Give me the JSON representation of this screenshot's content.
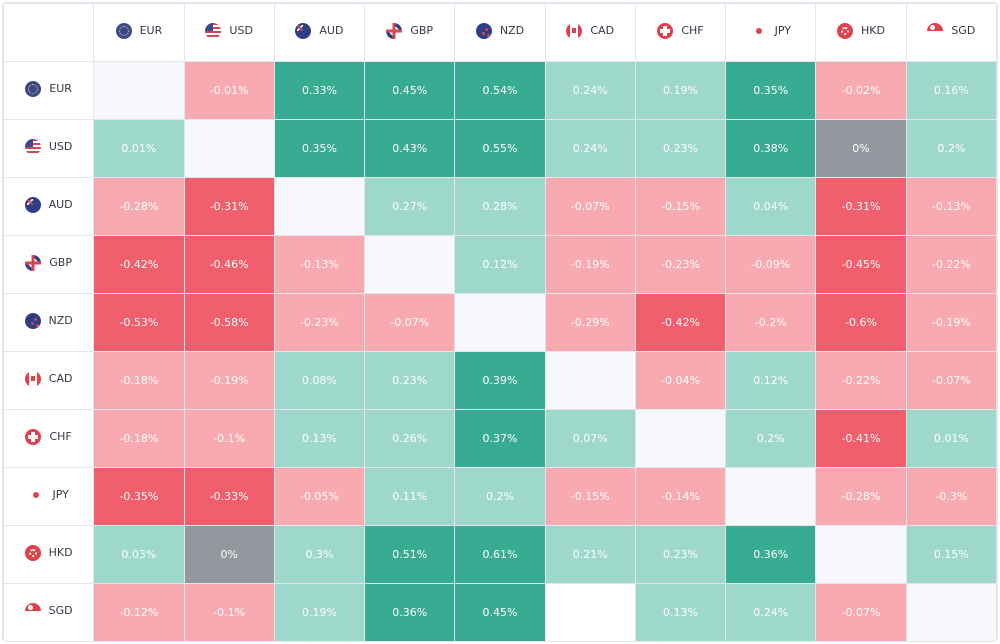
{
  "currencies": [
    {
      "code": "EUR",
      "flag": "eur"
    },
    {
      "code": "USD",
      "flag": "usd"
    },
    {
      "code": "AUD",
      "flag": "aud"
    },
    {
      "code": "GBP",
      "flag": "gbp"
    },
    {
      "code": "NZD",
      "flag": "nzd"
    },
    {
      "code": "CAD",
      "flag": "cad"
    },
    {
      "code": "CHF",
      "flag": "chf"
    },
    {
      "code": "JPY",
      "flag": "jpy"
    },
    {
      "code": "HKD",
      "flag": "hkd"
    },
    {
      "code": "SGD",
      "flag": "sgd"
    }
  ],
  "colors": {
    "strong_positive": "#38ab93",
    "positive": "#9ed8cb",
    "negative": "#f8aab0",
    "strong_negative": "#f25f6c",
    "neutral": "#94979e",
    "diagonal": "#f7f8fc"
  },
  "matrix": [
    [
      null,
      "-0.01%",
      "0.33%",
      "0.45%",
      "0.54%",
      "0.24%",
      "0.19%",
      "0.35%",
      "-0.02%",
      "0.16%"
    ],
    [
      "0.01%",
      null,
      "0.35%",
      "0.43%",
      "0.55%",
      "0.24%",
      "0.23%",
      "0.38%",
      "0%",
      "0.2%"
    ],
    [
      "-0.28%",
      "-0.31%",
      null,
      "0.27%",
      "0.28%",
      "-0.07%",
      "-0.15%",
      "0.04%",
      "-0.31%",
      "-0.13%"
    ],
    [
      "-0.42%",
      "-0.46%",
      "-0.13%",
      null,
      "0.12%",
      "-0.19%",
      "-0.23%",
      "-0.09%",
      "-0.45%",
      "-0.22%"
    ],
    [
      "-0.53%",
      "-0.58%",
      "-0.23%",
      "-0.07%",
      null,
      "-0.29%",
      "-0.42%",
      "-0.2%",
      "-0.6%",
      "-0.19%"
    ],
    [
      "-0.18%",
      "-0.19%",
      "0.08%",
      "0.23%",
      "0.39%",
      null,
      "-0.04%",
      "0.12%",
      "-0.22%",
      "-0.07%"
    ],
    [
      "-0.18%",
      "-0.1%",
      "0.13%",
      "0.26%",
      "0.37%",
      "0.07%",
      null,
      "0.2%",
      "-0.41%",
      "0.01%"
    ],
    [
      "-0.35%",
      "-0.33%",
      "-0.05%",
      "0.11%",
      "0.2%",
      "-0.15%",
      "-0.14%",
      null,
      "-0.28%",
      "-0.3%"
    ],
    [
      "0.03%",
      "0%",
      "0.3%",
      "0.51%",
      "0.61%",
      "0.21%",
      "0.23%",
      "0.36%",
      null,
      "0.15%"
    ],
    [
      "-0.12%",
      "-0.1%",
      "0.19%",
      "0.36%",
      "0.45%",
      "",
      "0.13%",
      "0.24%",
      "-0.07%",
      null
    ]
  ]
}
